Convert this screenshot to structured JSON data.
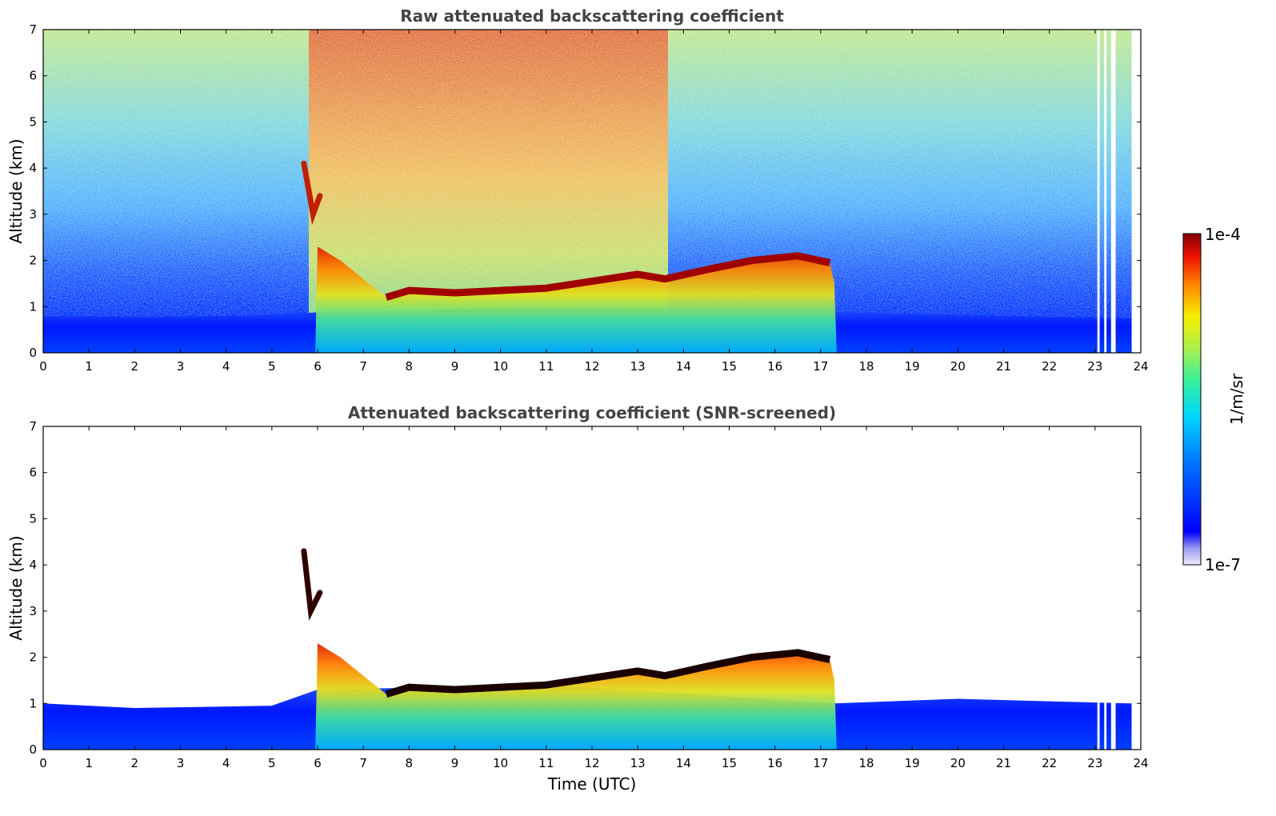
{
  "chart_data": [
    {
      "type": "heatmap",
      "title": "Raw attenuated backscattering coefficient",
      "xlabel": "",
      "ylabel": "Altitude (km)",
      "xlim": [
        0,
        24
      ],
      "ylim": [
        0,
        7
      ],
      "xticks": [
        "0",
        "1",
        "2",
        "3",
        "4",
        "5",
        "6",
        "7",
        "8",
        "9",
        "10",
        "11",
        "12",
        "13",
        "14",
        "15",
        "16",
        "17",
        "18",
        "19",
        "20",
        "21",
        "22",
        "23",
        "24"
      ],
      "yticks": [
        "0",
        "1",
        "2",
        "3",
        "4",
        "5",
        "6",
        "7"
      ],
      "features": {
        "boundary_layer_top_km": [
          [
            0,
            0.6
          ],
          [
            4,
            0.6
          ],
          [
            6,
            0.9
          ],
          [
            12,
            1.0
          ],
          [
            17,
            1.0
          ],
          [
            24,
            0.9
          ]
        ],
        "cloud_layer": [
          [
            7.5,
            1.2
          ],
          [
            8,
            1.35
          ],
          [
            9,
            1.3
          ],
          [
            10,
            1.35
          ],
          [
            11,
            1.4
          ],
          [
            12,
            1.55
          ],
          [
            13,
            1.7
          ],
          [
            13.6,
            1.6
          ],
          [
            14.5,
            1.8
          ],
          [
            15.5,
            2.0
          ],
          [
            16.5,
            2.1
          ],
          [
            17.2,
            1.95
          ]
        ],
        "elevated_layer": [
          [
            5.7,
            4.1
          ],
          [
            5.9,
            3.0
          ],
          [
            6.05,
            3.4
          ]
        ],
        "high_noise_period_utc": [
          5.8,
          13.7
        ],
        "data_gaps_utc": [
          [
            23.05,
            23.1
          ],
          [
            23.2,
            23.25
          ],
          [
            23.35,
            23.45
          ],
          [
            23.8,
            24
          ]
        ]
      }
    },
    {
      "type": "heatmap",
      "title": "Attenuated backscattering coefficient (SNR-screened)",
      "xlabel": "Time (UTC)",
      "ylabel": "Altitude (km)",
      "xlim": [
        0,
        24
      ],
      "ylim": [
        0,
        7
      ],
      "xticks": [
        "0",
        "1",
        "2",
        "3",
        "4",
        "5",
        "6",
        "7",
        "8",
        "9",
        "10",
        "11",
        "12",
        "13",
        "14",
        "15",
        "16",
        "17",
        "18",
        "19",
        "20",
        "21",
        "22",
        "23",
        "24"
      ],
      "yticks": [
        "0",
        "1",
        "2",
        "3",
        "4",
        "5",
        "6",
        "7"
      ],
      "features": {
        "boundary_layer_top_km": [
          [
            0,
            1.0
          ],
          [
            2,
            0.9
          ],
          [
            5,
            0.95
          ],
          [
            6,
            1.3
          ],
          [
            11,
            1.4
          ],
          [
            17.3,
            1.0
          ],
          [
            20,
            1.1
          ],
          [
            23.8,
            1.0
          ]
        ],
        "cloud_layer": [
          [
            7.5,
            1.2
          ],
          [
            8,
            1.35
          ],
          [
            9,
            1.3
          ],
          [
            10,
            1.35
          ],
          [
            11,
            1.4
          ],
          [
            12,
            1.55
          ],
          [
            13,
            1.7
          ],
          [
            13.6,
            1.6
          ],
          [
            14.5,
            1.8
          ],
          [
            15.5,
            2.0
          ],
          [
            16.5,
            2.1
          ],
          [
            17.2,
            1.95
          ]
        ],
        "elevated_layer": [
          [
            5.7,
            4.3
          ],
          [
            5.85,
            3.0
          ],
          [
            6.05,
            3.4
          ]
        ]
      }
    }
  ],
  "colorbar": {
    "label": "1/m/sr",
    "max_label": "1e-4",
    "min_label": "1e-7",
    "colors": [
      "#ffffff",
      "#dcdcf6",
      "#b3b3ee",
      "#8c8cf2",
      "#0000ff",
      "#0040ff",
      "#0080ff",
      "#00c0ff",
      "#00e0e0",
      "#20e8a0",
      "#80f080",
      "#c0f040",
      "#f0f000",
      "#ffc000",
      "#ff8000",
      "#ff4000",
      "#e00000",
      "#8b0000"
    ]
  }
}
